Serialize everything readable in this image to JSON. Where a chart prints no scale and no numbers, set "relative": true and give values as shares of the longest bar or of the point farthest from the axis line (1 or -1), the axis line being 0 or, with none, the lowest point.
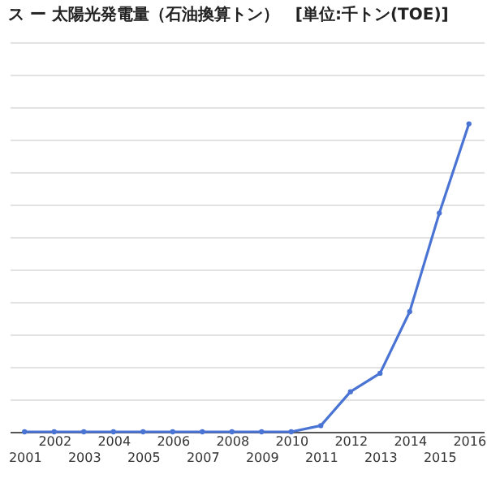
{
  "chart_data": {
    "type": "line",
    "title": "ス ー 太陽光発電量（石油換算トン）　[単位:千トン(TOE)]",
    "categories": [
      "2001",
      "2002",
      "2003",
      "2004",
      "2005",
      "2006",
      "2007",
      "2008",
      "2009",
      "2010",
      "2011",
      "2012",
      "2013",
      "2014",
      "2015",
      "2016"
    ],
    "series": [
      {
        "color": "#4a74d4",
        "values": [
          0,
          0,
          0,
          0,
          0,
          0,
          0,
          0,
          0,
          0,
          0.02,
          0.13,
          0.19,
          0.39,
          0.71,
          1
        ]
      }
    ],
    "relative": true,
    "grid": "y",
    "marker": "circle",
    "line_style": "solid",
    "legend": false
  }
}
